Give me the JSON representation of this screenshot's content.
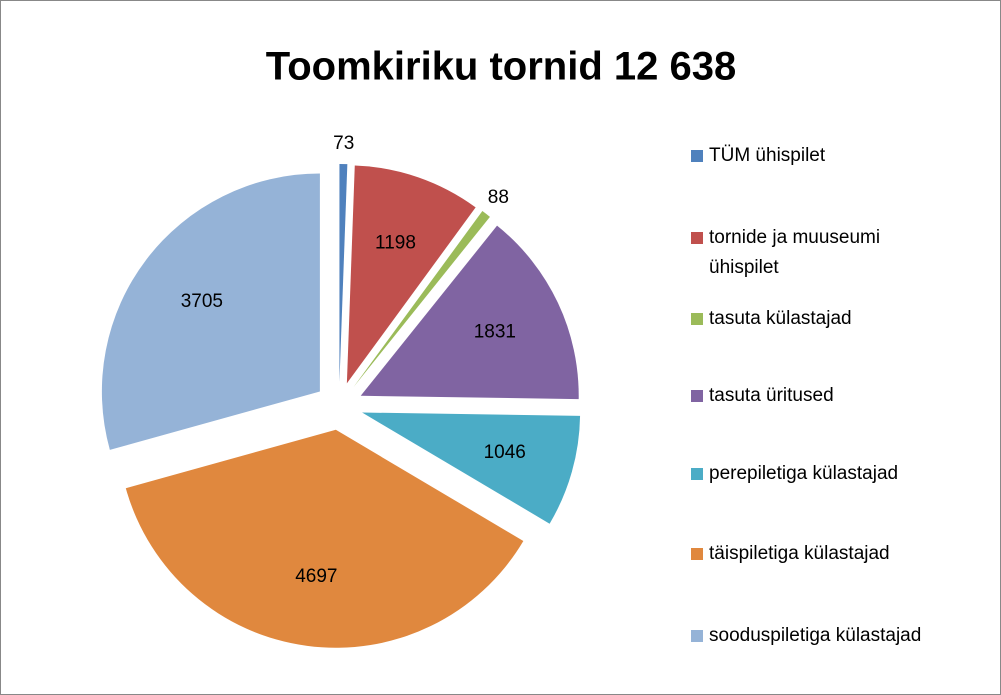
{
  "chart_data": {
    "type": "pie",
    "title": "Toomkiriku tornid 12 638",
    "categories": [
      "TÜM ühispilet",
      "tornide ja muuseumi ühispilet",
      "tasuta külastajad",
      "tasuta üritused",
      "perepiletiga külastajad",
      "täispiletiga külastajad",
      "sooduspiletiga külastajad"
    ],
    "values": [
      73,
      1198,
      88,
      1831,
      1046,
      4697,
      3705
    ],
    "colors": [
      "#4F81BD",
      "#C0504D",
      "#9BBB59",
      "#8064A2",
      "#4BACC6",
      "#E0883E",
      "#95B3D7"
    ],
    "exploded": true,
    "legend": "right"
  }
}
